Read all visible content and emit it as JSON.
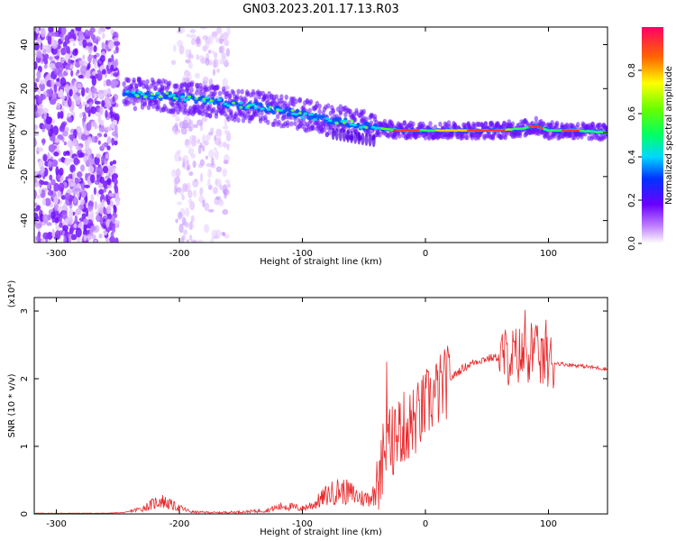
{
  "title": "GN03.2023.201.17.13.R03",
  "colors": {
    "snr_line": "#e8282a",
    "axis": "#000000",
    "spec_track": "#7a16ff"
  },
  "chart_data": [
    {
      "type": "heatmap",
      "xlabel": "Height of straight line (km)",
      "ylabel": "Frequency (Hz)",
      "xlim": [
        -318,
        148
      ],
      "ylim": [
        -50,
        48
      ],
      "xticks": [
        -300,
        -200,
        -100,
        0,
        100
      ],
      "yticks": [
        -40,
        -20,
        0,
        20,
        40
      ],
      "grid": false,
      "colorbar": {
        "label": "Normalized spectral amplitude",
        "ticks": [
          "0.0",
          "0.2",
          "0.4",
          "0.6",
          "0.8"
        ],
        "range": [
          0,
          1
        ],
        "colormap": "rainbow"
      },
      "ridge": {
        "x": [
          -245,
          -220,
          -200,
          -180,
          -160,
          -140,
          -120,
          -100,
          -80,
          -60,
          -40,
          -20,
          0,
          20,
          40,
          60,
          80,
          90,
          100,
          120,
          148
        ],
        "y": [
          18,
          17,
          16,
          15,
          13,
          12,
          10,
          8,
          6,
          4,
          2,
          1,
          1,
          1,
          1,
          1,
          2,
          3,
          1,
          1,
          0
        ]
      },
      "noise_regions": [
        {
          "x_range": [
            -318,
            -250
          ],
          "level": "dense"
        },
        {
          "x_range": [
            -205,
            -160
          ],
          "level": "sparse"
        }
      ]
    },
    {
      "type": "line",
      "xlabel": "Height of straight line (km)",
      "ylabel": "SNR (10 * v/v)",
      "yscale_label": "(x10⁴)",
      "xlim": [
        -318,
        148
      ],
      "ylim": [
        0,
        3.2
      ],
      "xticks": [
        -300,
        -200,
        -100,
        0,
        100
      ],
      "yticks": [
        0,
        1,
        2,
        3
      ],
      "grid": false,
      "series": [
        {
          "x": [
            -318,
            -260,
            -245,
            -230,
            -215,
            -205,
            -190,
            -170,
            -150,
            -130,
            -115,
            -100,
            -90,
            -80,
            -70,
            -60,
            -50,
            -40,
            -35,
            -30,
            -25,
            -20,
            -15,
            -10,
            -5,
            0,
            10,
            20,
            30,
            40,
            50,
            60,
            70,
            80,
            85,
            90,
            95,
            100,
            110,
            120,
            130,
            140,
            148
          ],
          "y": [
            0.01,
            0.01,
            0.02,
            0.08,
            0.2,
            0.12,
            0.03,
            0.02,
            0.03,
            0.05,
            0.12,
            0.08,
            0.15,
            0.28,
            0.35,
            0.3,
            0.22,
            0.3,
            0.8,
            1.0,
            1.15,
            1.25,
            1.3,
            1.35,
            1.45,
            1.6,
            1.8,
            2.0,
            2.15,
            2.25,
            2.3,
            2.32,
            2.33,
            2.35,
            2.4,
            2.35,
            2.3,
            2.25,
            2.22,
            2.2,
            2.18,
            2.16,
            2.14
          ]
        }
      ]
    }
  ]
}
